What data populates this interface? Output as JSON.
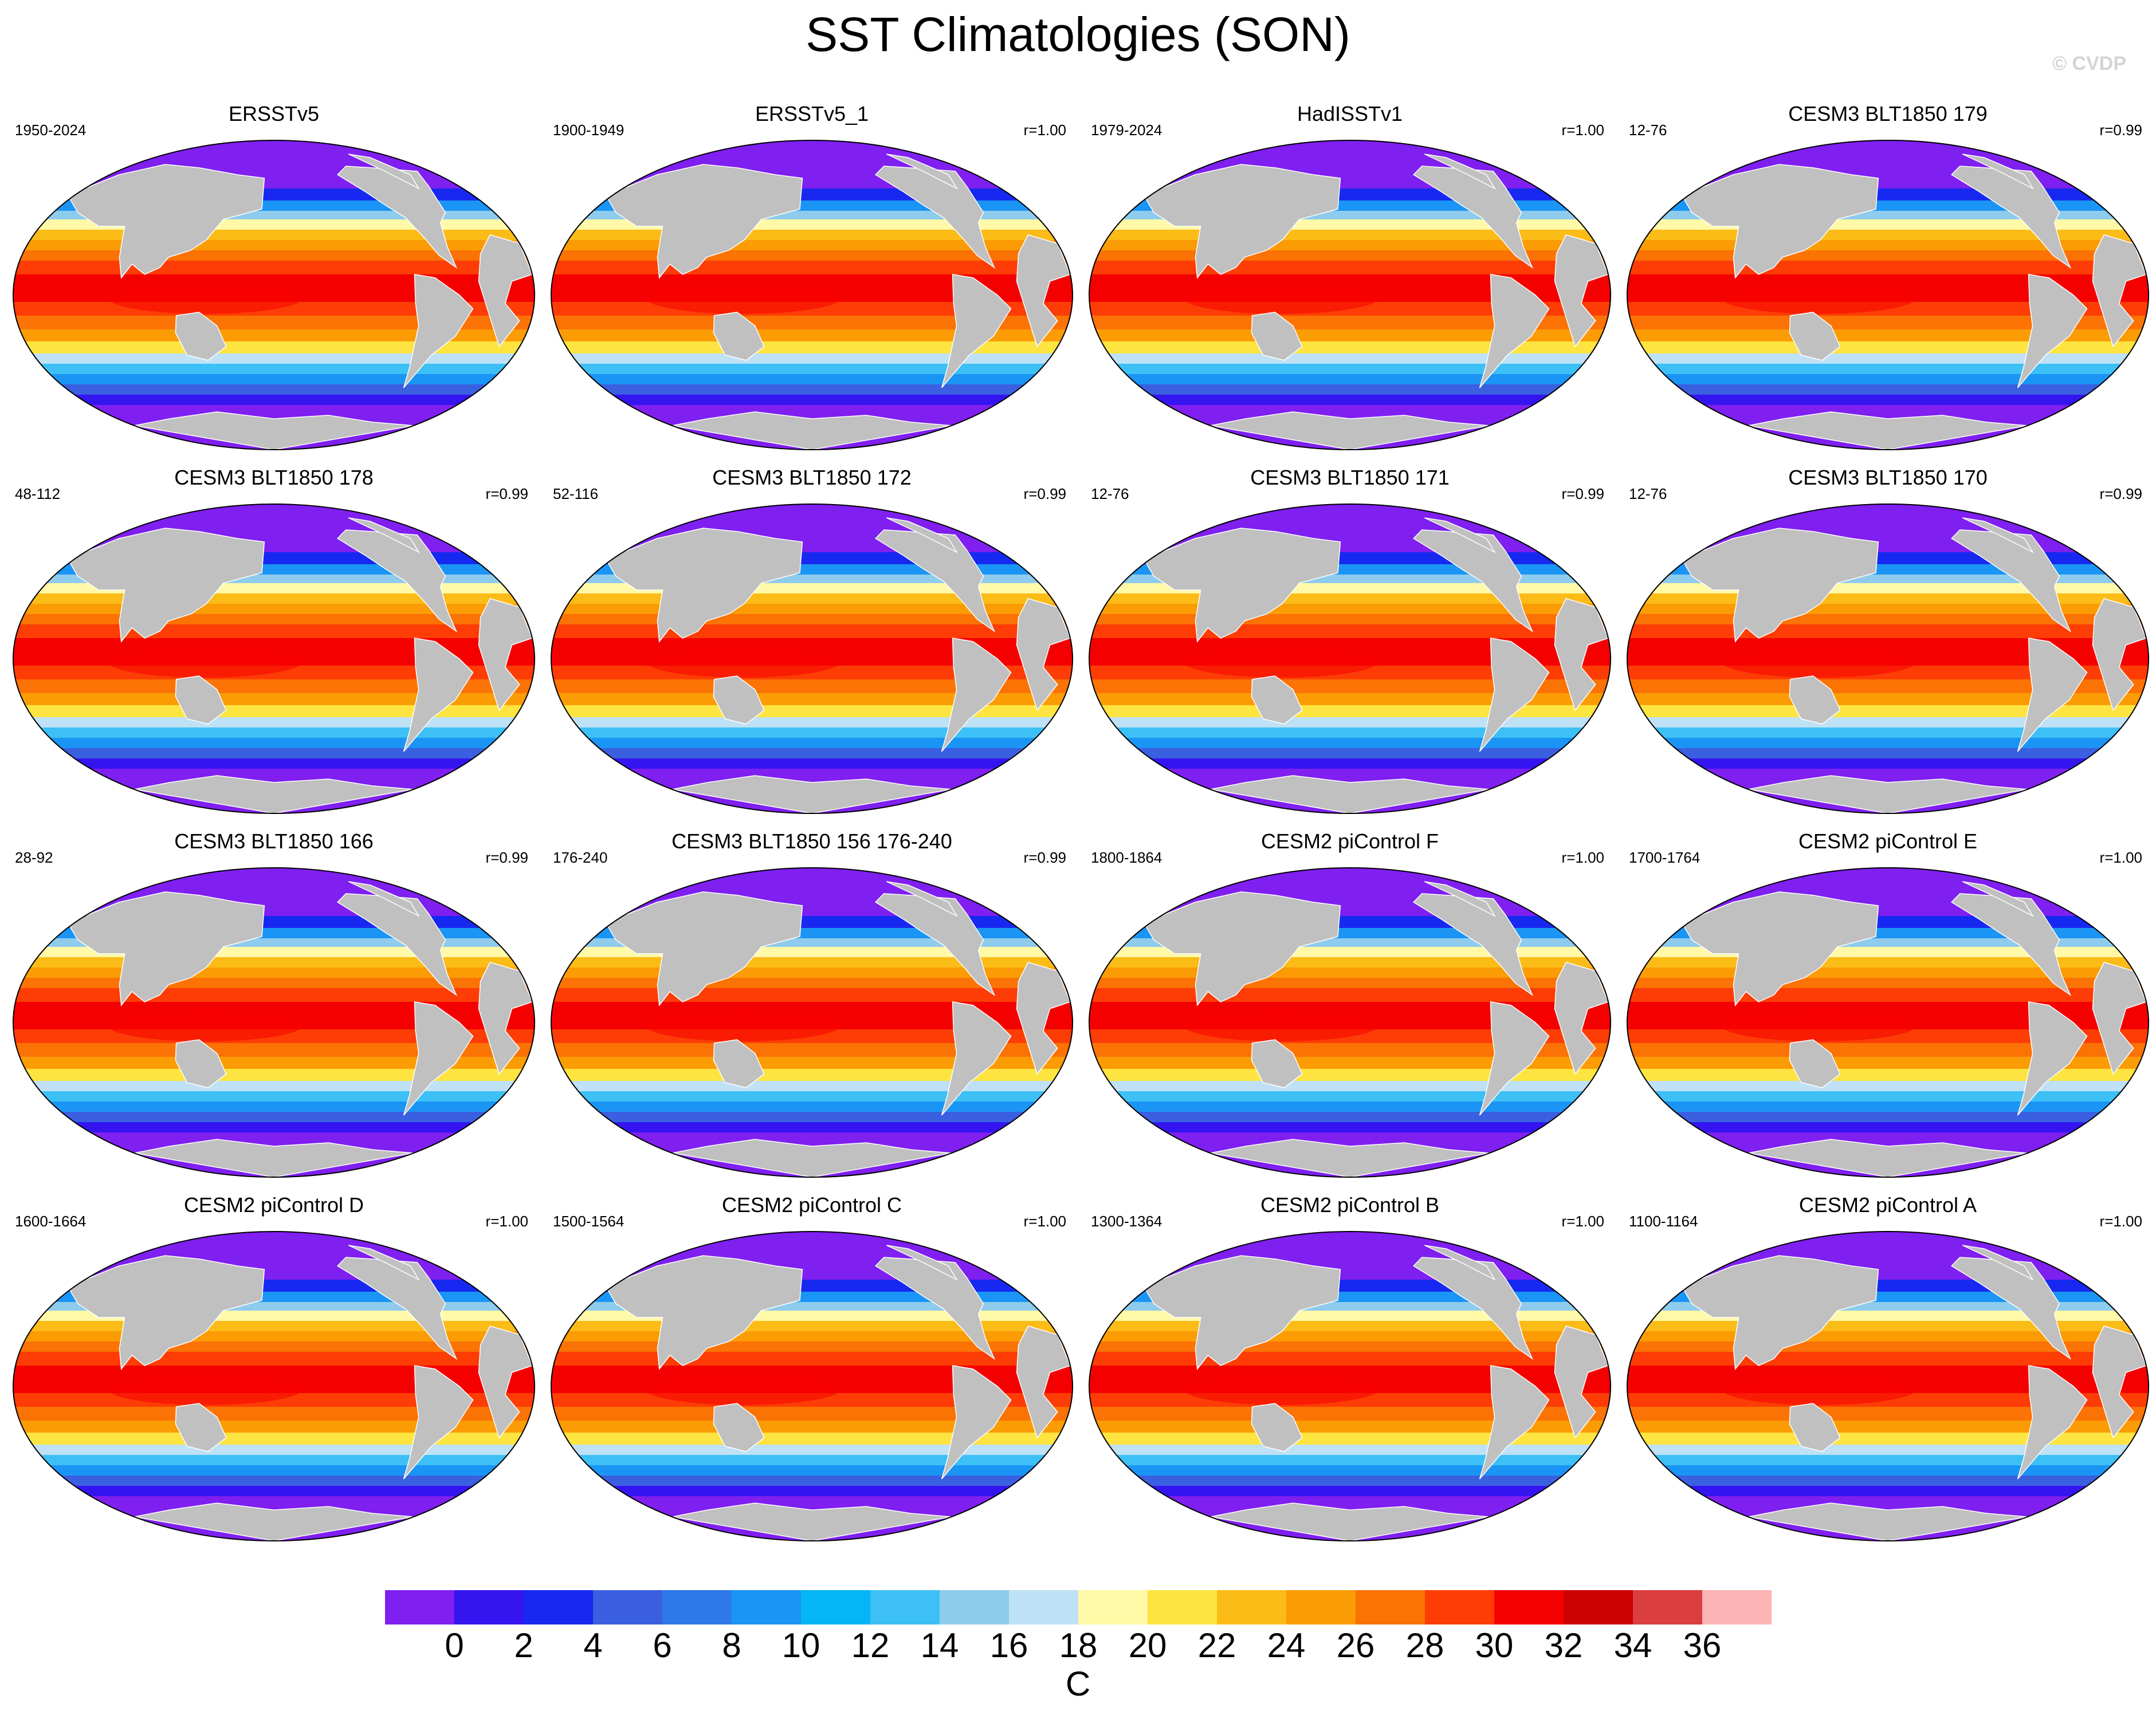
{
  "figure": {
    "title": "SST Climatologies (SON)",
    "watermark": "© CVDP",
    "land_color": "#c0c0c0"
  },
  "panels": [
    {
      "title": "ERSSTv5",
      "years": "1950-2024",
      "corr": ""
    },
    {
      "title": "ERSSTv5_1",
      "years": "1900-1949",
      "corr": "r=1.00"
    },
    {
      "title": "HadISSTv1",
      "years": "1979-2024",
      "corr": "r=1.00"
    },
    {
      "title": "CESM3 BLT1850 179",
      "years": "12-76",
      "corr": "r=0.99"
    },
    {
      "title": "CESM3 BLT1850 178",
      "years": "48-112",
      "corr": "r=0.99"
    },
    {
      "title": "CESM3 BLT1850 172",
      "years": "52-116",
      "corr": "r=0.99"
    },
    {
      "title": "CESM3 BLT1850 171",
      "years": "12-76",
      "corr": "r=0.99"
    },
    {
      "title": "CESM3 BLT1850 170",
      "years": "12-76",
      "corr": "r=0.99"
    },
    {
      "title": "CESM3 BLT1850 166",
      "years": "28-92",
      "corr": "r=0.99"
    },
    {
      "title": "CESM3 BLT1850 156 176-240",
      "years": "176-240",
      "corr": "r=0.99"
    },
    {
      "title": "CESM2 piControl F",
      "years": "1800-1864",
      "corr": "r=1.00"
    },
    {
      "title": "CESM2 piControl E",
      "years": "1700-1764",
      "corr": "r=1.00"
    },
    {
      "title": "CESM2 piControl D",
      "years": "1600-1664",
      "corr": "r=1.00"
    },
    {
      "title": "CESM2 piControl C",
      "years": "1500-1564",
      "corr": "r=1.00"
    },
    {
      "title": "CESM2 piControl B",
      "years": "1300-1364",
      "corr": "r=1.00"
    },
    {
      "title": "CESM2 piControl A",
      "years": "1100-1164",
      "corr": "r=1.00"
    }
  ],
  "colorbar": {
    "colors": [
      "#7f1ff0",
      "#3415f0",
      "#1729f0",
      "#3a5fe0",
      "#2e78ea",
      "#1a95f5",
      "#05b5f5",
      "#3dc0f5",
      "#8ecbec",
      "#bfe1f5",
      "#fff9a8",
      "#fde440",
      "#fbbc18",
      "#fb9c05",
      "#fb7205",
      "#fd3d05",
      "#f50000",
      "#cc0000",
      "#db3e3e",
      "#fcb4b4"
    ],
    "ticks": [
      "0",
      "2",
      "4",
      "6",
      "8",
      "10",
      "12",
      "14",
      "16",
      "18",
      "20",
      "22",
      "24",
      "26",
      "28",
      "30",
      "32",
      "34",
      "36"
    ],
    "units": "C"
  }
}
